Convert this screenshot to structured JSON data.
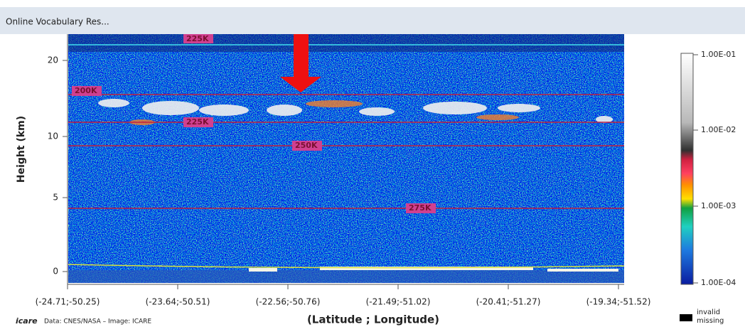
{
  "window": {
    "title": "Online Vocabulary Res..."
  },
  "plot": {
    "y_axis_label": "Height (km)",
    "y_ticks": [
      "20",
      "10",
      "5",
      "0"
    ],
    "x_ticks": [
      "(-24.71;-50.25)",
      "(-23.64;-50.51)",
      "(-22.56;-50.76)",
      "(-21.49;-51.02)",
      "(-20.41;-51.27)",
      "(-19.34;-51.52)"
    ],
    "x_axis_label": "(Latitude ; Longitude)",
    "temperature_labels": [
      "225K",
      "200K",
      "225K",
      "250K",
      "275K"
    ],
    "logo": "icare",
    "credit": "Data: CNES/NASA – Image: ICARE"
  },
  "colorbar": {
    "labels": [
      "1.00E-01",
      "1.00E-02",
      "1.00E-03",
      "1.00E-04"
    ],
    "legend": [
      "invalid",
      "missing"
    ]
  }
}
